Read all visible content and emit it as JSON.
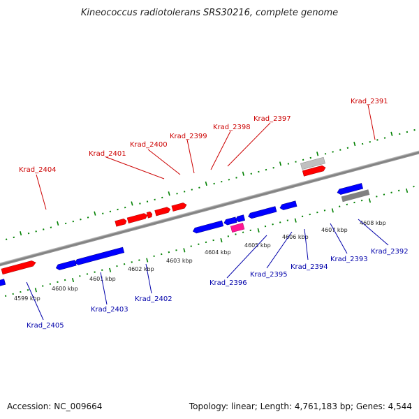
{
  "title": "Kineococcus radiotolerans SRS30216, complete genome",
  "footer": {
    "accession": "Accession: NC_009664",
    "summary": "Topology: linear; Length: 4,761,183 bp; Genes: 4,544"
  },
  "colors": {
    "forward_gene": "#ff0000",
    "reverse_gene": "#0000ff",
    "highlight_gene": "#ff1493",
    "other_feature": "#c0c0c0",
    "backbone": "#808080",
    "tick": "#008000",
    "forward_label": "#cc0000",
    "reverse_label": "#0000aa"
  },
  "scale_labels": [
    "4599 kbp",
    "4600 kbp",
    "4601 kbp",
    "4602 kbp",
    "4603 kbp",
    "4604 kbp",
    "4605 kbp",
    "4606 kbp",
    "4607 kbp",
    "4608 kbp"
  ],
  "forward_gene_labels": [
    "Krad_2404",
    "Krad_2401",
    "Krad_2400",
    "Krad_2399",
    "Krad_2398",
    "Krad_2397",
    "Krad_2391"
  ],
  "reverse_gene_labels": [
    "Krad_2405",
    "Krad_2403",
    "Krad_2402",
    "Krad_2396",
    "Krad_2395",
    "Krad_2394",
    "Krad_2393",
    "Krad_2392"
  ]
}
